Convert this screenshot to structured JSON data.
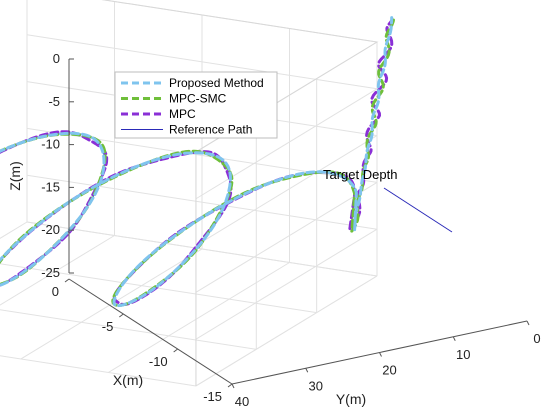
{
  "chart_data": {
    "type": "line",
    "subtype": "3d-helix",
    "title": "",
    "xlabel": "X(m)",
    "ylabel": "Y(m)",
    "zlabel": "Z(m)",
    "xlim": [
      -15,
      0
    ],
    "ylim": [
      0,
      40
    ],
    "zlim": [
      -25,
      0
    ],
    "x_ticks": [
      "0",
      "-5",
      "-10",
      "-15"
    ],
    "y_ticks": [
      "40",
      "30",
      "20",
      "10",
      "0"
    ],
    "z_ticks": [
      "0",
      "-5",
      "-10",
      "-15",
      "-20",
      "-25"
    ],
    "grid": true,
    "legend_position": "top-left",
    "series": [
      {
        "name": "Proposed Method",
        "color": "#7fc4ee",
        "style": "dashed",
        "width": 3
      },
      {
        "name": "MPC-SMC",
        "color": "#6fbf3a",
        "style": "dashed",
        "width": 3
      },
      {
        "name": "MPC",
        "color": "#8a2fd6",
        "style": "dashed",
        "width": 3
      },
      {
        "name": "Reference Path",
        "color": "#2a2ab8",
        "style": "solid",
        "width": 1
      }
    ],
    "annotation": {
      "text": "Target Depth"
    }
  }
}
